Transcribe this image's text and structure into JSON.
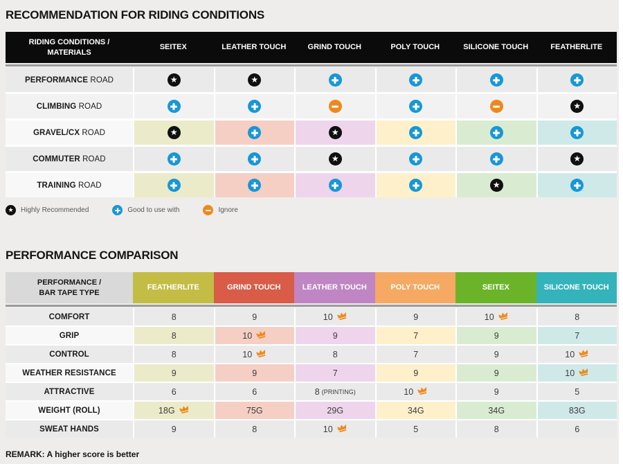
{
  "colors": {
    "page_bg": "#eeedeb",
    "header_black": "#0b0b0b",
    "star_black": "#101010",
    "plus_blue": "#1897d5",
    "minus_orange": "#f0871c",
    "crown_orange": "#ef8a1c",
    "row_gray": "#eaeaea",
    "row_gray_light": "#f2f2f2",
    "row_label_light": "#f8f8f8",
    "t2_label_header_bg": "#d9d9d9",
    "column_strong": [
      "#c3bd45",
      "#d85c48",
      "#bf86c3",
      "#f5a963",
      "#6bb42a",
      "#34b3bb"
    ],
    "column_pale": [
      "#ebebca",
      "#f5cfc4",
      "#eed5ec",
      "#fdf0cb",
      "#d9ecd1",
      "#cfe9e9"
    ]
  },
  "riding_table": {
    "title": "RECOMMENDATION FOR RIDING CONDITIONS",
    "header": {
      "label": "RIDING CONDITIONS /\nMATERIALS",
      "columns": [
        "SEITEX",
        "LEATHER TOUCH",
        "GRIND TOUCH",
        "POLY TOUCH",
        "SILICONE TOUCH",
        "FEATHERLITE"
      ]
    },
    "rows": [
      {
        "label_strong": "PERFORMANCE",
        "label_rest": "ROAD",
        "style": "gray",
        "cells": [
          "star",
          "star",
          "plus",
          "plus",
          "plus",
          "plus"
        ]
      },
      {
        "label_strong": "CLIMBING",
        "label_rest": "ROAD",
        "style": "graylight",
        "cells": [
          "plus",
          "plus",
          "minus",
          "plus",
          "minus",
          "star"
        ]
      },
      {
        "label_strong": "GRAVEL/CX",
        "label_rest": "ROAD",
        "style": "colored",
        "cells": [
          "star",
          "plus",
          "star",
          "plus",
          "plus",
          "plus"
        ]
      },
      {
        "label_strong": "COMMUTER",
        "label_rest": "ROAD",
        "style": "gray",
        "cells": [
          "plus",
          "plus",
          "star",
          "plus",
          "plus",
          "star"
        ]
      },
      {
        "label_strong": "TRAINING",
        "label_rest": "ROAD",
        "style": "colored",
        "cells": [
          "plus",
          "plus",
          "plus",
          "plus",
          "star",
          "plus"
        ]
      }
    ],
    "legend": [
      {
        "icon": "star",
        "label": "Highly Recommended"
      },
      {
        "icon": "plus",
        "label": "Good to use with"
      },
      {
        "icon": "minus",
        "label": "Ignore"
      }
    ]
  },
  "performance_table": {
    "title": "PERFORMANCE COMPARISON",
    "header": {
      "label": "PERFORMANCE /\nBAR TAPE TYPE",
      "columns": [
        "FEATHERLITE",
        "GRIND TOUCH",
        "LEATHER TOUCH",
        "POLY TOUCH",
        "SEITEX",
        "SILICONE TOUCH"
      ]
    },
    "rows": [
      {
        "label": "COMFORT",
        "style": "gray",
        "cells": [
          {
            "value": "8"
          },
          {
            "value": "9"
          },
          {
            "value": "10",
            "crown": true
          },
          {
            "value": "9"
          },
          {
            "value": "10",
            "crown": true
          },
          {
            "value": "8"
          }
        ]
      },
      {
        "label": "GRIP",
        "style": "colored",
        "cells": [
          {
            "value": "8"
          },
          {
            "value": "10",
            "crown": true
          },
          {
            "value": "9"
          },
          {
            "value": "7"
          },
          {
            "value": "9"
          },
          {
            "value": "7"
          }
        ]
      },
      {
        "label": "CONTROL",
        "style": "gray",
        "cells": [
          {
            "value": "8"
          },
          {
            "value": "10",
            "crown": true
          },
          {
            "value": "8"
          },
          {
            "value": "7"
          },
          {
            "value": "9"
          },
          {
            "value": "10",
            "crown": true
          }
        ]
      },
      {
        "label": "WEATHER RESISTANCE",
        "style": "colored",
        "cells": [
          {
            "value": "9"
          },
          {
            "value": "9"
          },
          {
            "value": "7"
          },
          {
            "value": "9"
          },
          {
            "value": "9"
          },
          {
            "value": "10",
            "crown": true
          }
        ]
      },
      {
        "label": "ATTRACTIVE",
        "style": "gray",
        "cells": [
          {
            "value": "6"
          },
          {
            "value": "6"
          },
          {
            "value": "8",
            "suffix": "(PRINTING)"
          },
          {
            "value": "10",
            "crown": true
          },
          {
            "value": "9"
          },
          {
            "value": "5"
          }
        ]
      },
      {
        "label": "WEIGHT (ROLL)",
        "style": "colored",
        "cells": [
          {
            "value": "18G",
            "crown": true
          },
          {
            "value": "75G"
          },
          {
            "value": "29G"
          },
          {
            "value": "34G"
          },
          {
            "value": "34G"
          },
          {
            "value": "83G"
          }
        ]
      },
      {
        "label": "SWEAT HANDS",
        "style": "gray",
        "cells": [
          {
            "value": "9"
          },
          {
            "value": "8"
          },
          {
            "value": "10",
            "crown": true
          },
          {
            "value": "5"
          },
          {
            "value": "8"
          },
          {
            "value": "6"
          }
        ]
      }
    ],
    "remark": "REMARK: A higher score is better"
  }
}
